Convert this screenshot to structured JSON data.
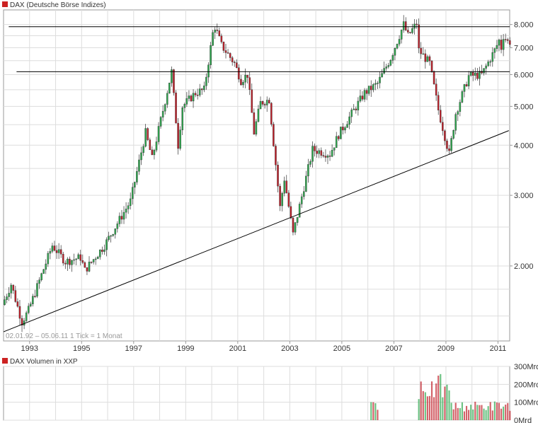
{
  "main_panel": {
    "legend_label": "DAX (Deutsche Börse Indizes)",
    "legend_color": "#cc2222",
    "info_text": "02.01.92 – 05.06.11   1 Tick = 1 Monat"
  },
  "volume_panel": {
    "legend_label": "DAX Volumen in XXP",
    "legend_color": "#cc2222"
  },
  "colors": {
    "up_candle": "#2fa84f",
    "down_candle": "#c0202a",
    "grid": "#dddddd",
    "frame": "#999999",
    "lines": "#000000",
    "text": "#333333"
  },
  "chart_data": [
    {
      "type": "candlestick",
      "title": "DAX (Deutsche Börse Indizes)",
      "period": "02.01.92 – 05.06.11",
      "interval": "1 Tick = 1 Monat",
      "y_scale": "log",
      "ylim": [
        1300,
        8700
      ],
      "y_tick_labels": [
        "2.000",
        "3.000",
        "4.000",
        "5.000",
        "6.000",
        "7.000",
        "8.000"
      ],
      "y_ticks": [
        2000,
        3000,
        4000,
        5000,
        6000,
        7000,
        8000
      ],
      "x_tick_labels": [
        "1993",
        "1995",
        "1997",
        "1999",
        "2001",
        "2003",
        "2005",
        "2007",
        "2009",
        "2011"
      ],
      "x_tick_years": [
        1993,
        1995,
        1997,
        1999,
        2001,
        2003,
        2005,
        2007,
        2009,
        2011
      ],
      "xlim": [
        1992.0,
        2011.45
      ],
      "grid": true,
      "monthly_close_keypoints": [
        [
          "1992-01",
          1600
        ],
        [
          "1992-05",
          1800
        ],
        [
          "1992-10",
          1450
        ],
        [
          "1993-01",
          1550
        ],
        [
          "1993-12",
          2250
        ],
        [
          "1994-06",
          2050
        ],
        [
          "1995-01",
          2100
        ],
        [
          "1995-03",
          1950
        ],
        [
          "1995-12",
          2250
        ],
        [
          "1996-12",
          2900
        ],
        [
          "1997-07",
          4300
        ],
        [
          "1997-10",
          3700
        ],
        [
          "1998-07",
          6100
        ],
        [
          "1998-10",
          4000
        ],
        [
          "1998-12",
          5000
        ],
        [
          "1999-06",
          5400
        ],
        [
          "1999-10",
          5500
        ],
        [
          "2000-02",
          7600
        ],
        [
          "2000-03",
          7900
        ],
        [
          "2000-06",
          7100
        ],
        [
          "2000-12",
          6400
        ],
        [
          "2001-03",
          5800
        ],
        [
          "2001-06",
          6000
        ],
        [
          "2001-09",
          4300
        ],
        [
          "2001-12",
          5100
        ],
        [
          "2002-04",
          5200
        ],
        [
          "2002-09",
          2800
        ],
        [
          "2002-11",
          3300
        ],
        [
          "2003-03",
          2400
        ],
        [
          "2003-12",
          3900
        ],
        [
          "2004-08",
          3800
        ],
        [
          "2004-12",
          4250
        ],
        [
          "2005-12",
          5400
        ],
        [
          "2006-06",
          5700
        ],
        [
          "2006-12",
          6600
        ],
        [
          "2007-06",
          8000
        ],
        [
          "2007-08",
          7500
        ],
        [
          "2007-12",
          8050
        ],
        [
          "2008-01",
          6900
        ],
        [
          "2008-06",
          6400
        ],
        [
          "2008-10",
          4900
        ],
        [
          "2009-03",
          3800
        ],
        [
          "2009-06",
          4800
        ],
        [
          "2009-12",
          5950
        ],
        [
          "2010-06",
          6000
        ],
        [
          "2010-12",
          6900
        ],
        [
          "2011-02",
          7300
        ],
        [
          "2011-03",
          7000
        ],
        [
          "2011-04",
          7500
        ],
        [
          "2011-06",
          7250
        ]
      ],
      "lines": [
        {
          "kind": "horizontal",
          "value": 7900
        },
        {
          "kind": "horizontal",
          "value": 6100
        },
        {
          "kind": "trendline",
          "from": [
            "1992-01",
            1370
          ],
          "to": [
            "2011-06",
            4350
          ]
        }
      ]
    },
    {
      "type": "bar",
      "title": "DAX Volumen in XXP",
      "y_tick_labels": [
        "0Mrd",
        "100Mrd",
        "200Mrd",
        "300Mrd"
      ],
      "y_ticks": [
        0,
        100,
        200,
        300
      ],
      "ylim": [
        0,
        300
      ],
      "grid": true,
      "volume_keypoints": [
        [
          "2006-01",
          0
        ],
        [
          "2006-02",
          80
        ],
        [
          "2006-05",
          80
        ],
        [
          "2006-06",
          0
        ],
        [
          "2007-11",
          0
        ],
        [
          "2007-12",
          120
        ],
        [
          "2008-01",
          220
        ],
        [
          "2008-06",
          170
        ],
        [
          "2008-10",
          200
        ],
        [
          "2009-02",
          150
        ],
        [
          "2009-04",
          80
        ],
        [
          "2011-06",
          85
        ]
      ]
    }
  ]
}
